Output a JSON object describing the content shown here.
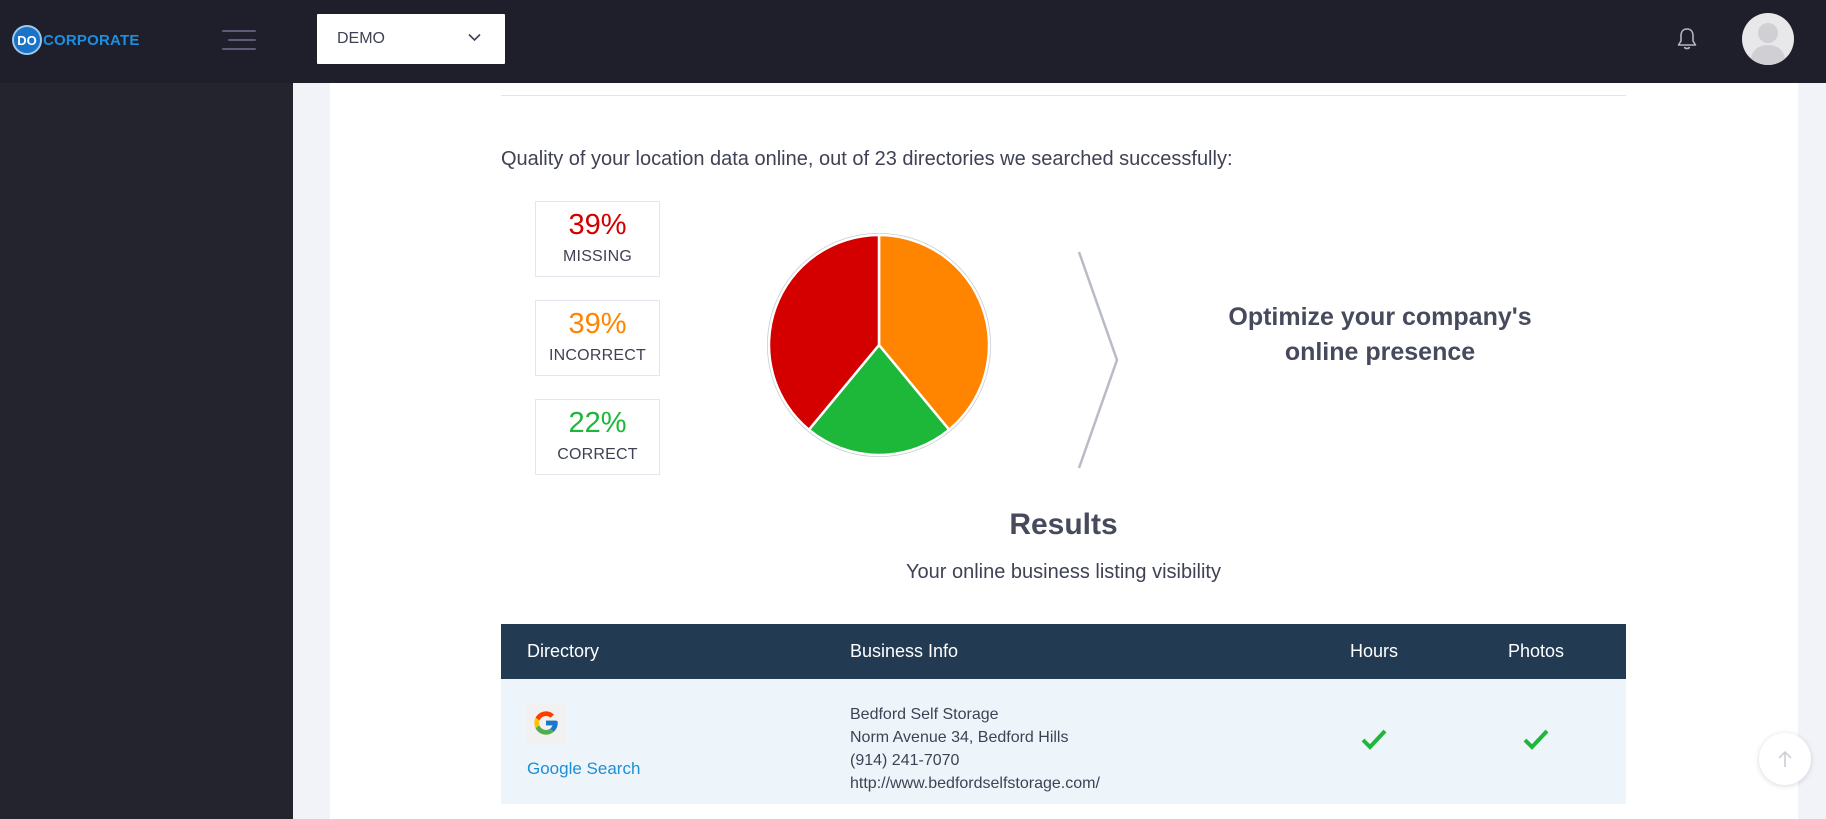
{
  "brand": {
    "badge": "DO",
    "name": "CORPORATE"
  },
  "account_selector": {
    "value": "DEMO"
  },
  "quality": {
    "text": "Quality of your location data online, out of 23 directories we searched successfully:"
  },
  "stats": [
    {
      "pct": "39%",
      "label": "MISSING",
      "color": "#d40000"
    },
    {
      "pct": "39%",
      "label": "INCORRECT",
      "color": "#ff8500"
    },
    {
      "pct": "22%",
      "label": "CORRECT",
      "color": "#1db83a"
    }
  ],
  "pie": {
    "slices": [
      {
        "label": "INCORRECT",
        "value": 39,
        "color": "#ff8500"
      },
      {
        "label": "CORRECT",
        "value": 22,
        "color": "#1db83a"
      },
      {
        "label": "MISSING",
        "value": 39,
        "color": "#d40000"
      }
    ]
  },
  "optimize": {
    "line1": "Optimize your company's",
    "line2": "online presence"
  },
  "results": {
    "title": "Results",
    "subtitle": "Your online business listing visibility"
  },
  "table": {
    "headers": {
      "directory": "Directory",
      "business_info": "Business Info",
      "hours": "Hours",
      "photos": "Photos"
    },
    "rows": [
      {
        "directory": "Google Search",
        "icon": "google-icon",
        "business_name": "Bedford Self Storage",
        "address": "Norm Avenue 34, Bedford Hills",
        "phone": "(914) 241-7070",
        "website": "http://www.bedfordselfstorage.com/",
        "hours": "check",
        "photos": "check"
      }
    ]
  }
}
